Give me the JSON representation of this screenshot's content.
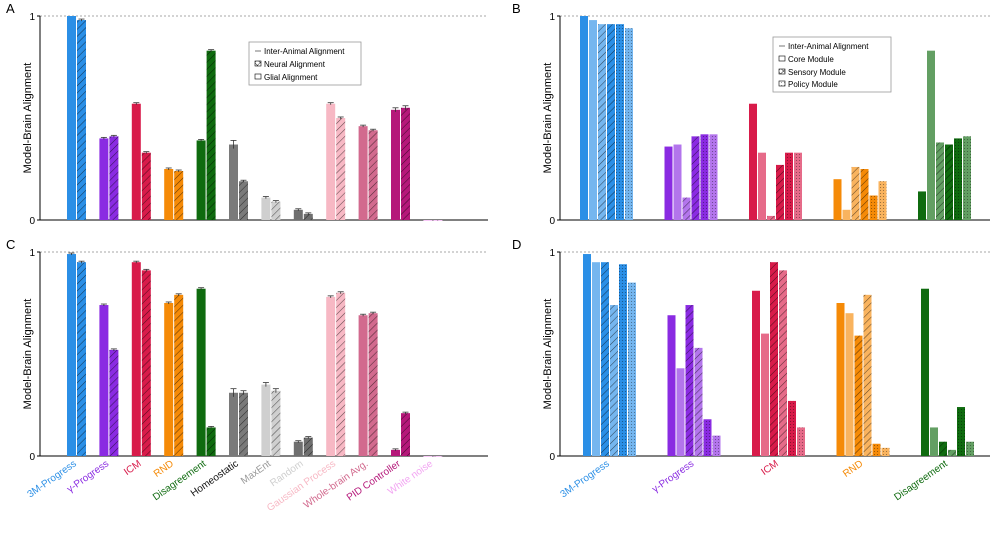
{
  "panel_labels": [
    "A",
    "B",
    "C",
    "D"
  ],
  "legends": {
    "A": [
      {
        "label": "Inter-Animal Alignment",
        "swatch": "line"
      },
      {
        "label": "Neural Alignment",
        "swatch": "crosshatch"
      },
      {
        "label": "Glial Alignment",
        "swatch": "open"
      }
    ],
    "B": [
      {
        "label": "Inter-Animal Alignment",
        "swatch": "line"
      },
      {
        "label": "Core Module",
        "swatch": "open"
      },
      {
        "label": "Sensory Module",
        "swatch": "crosshatch"
      },
      {
        "label": "Policy Module",
        "swatch": "dots"
      }
    ]
  },
  "bottom_labels_left": [
    {
      "text": "3M-Progress",
      "color": "#2b8fe6"
    },
    {
      "text": "γ-Progress",
      "color": "#8a2be2"
    },
    {
      "text": "ICM",
      "color": "#d81b4a"
    },
    {
      "text": "RND",
      "color": "#f58a07"
    },
    {
      "text": "Disagreement",
      "color": "#0f6b0f"
    },
    {
      "text": "Homeostatic",
      "color": "#111111"
    },
    {
      "text": "MaxEnt",
      "color": "#9a9a9a"
    },
    {
      "text": "Random",
      "color": "#cfcfcf"
    },
    {
      "text": "Gaussian Process",
      "color": "#f7b8c4"
    },
    {
      "text": "Whole-brain Avg.",
      "color": "#d26a8e"
    },
    {
      "text": "PID Controller",
      "color": "#b5187a"
    },
    {
      "text": "White noise",
      "color": "#f2a6f2"
    }
  ],
  "bottom_labels_right": [
    {
      "text": "3M-Progress",
      "color": "#2b8fe6"
    },
    {
      "text": "γ-Progress",
      "color": "#8a2be2"
    },
    {
      "text": "ICM",
      "color": "#d81b4a"
    },
    {
      "text": "RND",
      "color": "#f58a07"
    },
    {
      "text": "Disagreement",
      "color": "#0f6b0f"
    }
  ],
  "chart_data": [
    {
      "panel": "A",
      "type": "bar",
      "ylabel": "Model-Brain Alignment",
      "ylim": [
        0,
        1
      ],
      "yticks": [
        "0",
        "1"
      ],
      "reference_line": {
        "name": "Inter-Animal Alignment",
        "value": 1.0
      },
      "categories": [
        "3M-Progress",
        "γ-Progress",
        "ICM",
        "RND",
        "Disagreement",
        "Homeostatic",
        "MaxEnt",
        "Random",
        "Gaussian Process",
        "Whole-brain Avg.",
        "PID Controller",
        "White noise"
      ],
      "colors": [
        "#2b8fe6",
        "#8a2be2",
        "#d81b4a",
        "#f58a07",
        "#0f6b0f",
        "#7a7a7a",
        "#cfcfcf",
        "#6f6f6f",
        "#f7b8c4",
        "#d26a8e",
        "#b5187a",
        "#f2a6f2"
      ],
      "series": [
        {
          "name": "Glial Alignment",
          "pattern": "open",
          "values": [
            1.0,
            0.4,
            0.57,
            0.25,
            0.39,
            0.37,
            0.11,
            0.05,
            0.57,
            0.46,
            0.54,
            0.0
          ]
        },
        {
          "name": "Neural Alignment",
          "pattern": "hatch",
          "values": [
            0.98,
            0.41,
            0.33,
            0.24,
            0.83,
            0.19,
            0.09,
            0.03,
            0.5,
            0.44,
            0.55,
            0.0
          ]
        }
      ],
      "errors": [
        [
          0.0,
          0.005,
          0.005,
          0.005,
          0.005,
          0.02,
          0.005,
          0.005,
          0.005,
          0.005,
          0.01,
          0.0
        ],
        [
          0.005,
          0.005,
          0.005,
          0.005,
          0.005,
          0.005,
          0.005,
          0.005,
          0.005,
          0.005,
          0.01,
          0.0
        ]
      ]
    },
    {
      "panel": "B",
      "type": "bar",
      "ylabel": "Model-Brain Alignment",
      "ylim": [
        0,
        1
      ],
      "yticks": [
        "0",
        "1"
      ],
      "reference_line": {
        "name": "Inter-Animal Alignment",
        "value": 1.0
      },
      "categories": [
        "3M-Progress",
        "γ-Progress",
        "ICM",
        "RND",
        "Disagreement"
      ],
      "colors": [
        "#2b8fe6",
        "#8a2be2",
        "#d81b4a",
        "#f58a07",
        "#0f6b0f"
      ],
      "series": [
        {
          "name": "Core Module (Neural)",
          "pattern": "solid",
          "values": [
            1.0,
            0.36,
            0.57,
            0.2,
            0.14
          ]
        },
        {
          "name": "Core Module (Glial)",
          "pattern": "light",
          "values": [
            0.98,
            0.37,
            0.33,
            0.05,
            0.83
          ]
        },
        {
          "name": "Sensory Module (Neural)",
          "pattern": "hatch-light",
          "values": [
            0.96,
            0.11,
            0.02,
            0.26,
            0.38
          ]
        },
        {
          "name": "Sensory Module (Glial)",
          "pattern": "hatch",
          "values": [
            0.96,
            0.41,
            0.27,
            0.25,
            0.37
          ]
        },
        {
          "name": "Policy Module (Neural)",
          "pattern": "dots",
          "values": [
            0.96,
            0.42,
            0.33,
            0.12,
            0.4
          ]
        },
        {
          "name": "Policy Module (Glial)",
          "pattern": "dots-light",
          "values": [
            0.94,
            0.42,
            0.33,
            0.19,
            0.41
          ]
        }
      ]
    },
    {
      "panel": "C",
      "type": "bar",
      "ylabel": "Model-Brain Alignment",
      "ylim": [
        0,
        1
      ],
      "yticks": [
        "0",
        "1"
      ],
      "reference_line": {
        "name": "Inter-Animal Alignment",
        "value": 1.0
      },
      "categories": [
        "3M-Progress",
        "γ-Progress",
        "ICM",
        "RND",
        "Disagreement",
        "Homeostatic",
        "MaxEnt",
        "Random",
        "Gaussian Process",
        "Whole-brain Avg.",
        "PID Controller",
        "White noise"
      ],
      "colors": [
        "#2b8fe6",
        "#8a2be2",
        "#d81b4a",
        "#f58a07",
        "#0f6b0f",
        "#7a7a7a",
        "#cfcfcf",
        "#6f6f6f",
        "#f7b8c4",
        "#d26a8e",
        "#b5187a",
        "#f2a6f2"
      ],
      "series": [
        {
          "name": "Glial Alignment",
          "pattern": "open",
          "values": [
            0.99,
            0.74,
            0.95,
            0.75,
            0.82,
            0.31,
            0.35,
            0.07,
            0.78,
            0.69,
            0.03,
            0.0
          ]
        },
        {
          "name": "Neural Alignment",
          "pattern": "hatch",
          "values": [
            0.95,
            0.52,
            0.91,
            0.79,
            0.14,
            0.31,
            0.32,
            0.09,
            0.8,
            0.7,
            0.21,
            0.0
          ]
        }
      ],
      "errors": [
        [
          0.005,
          0.005,
          0.005,
          0.005,
          0.005,
          0.02,
          0.01,
          0.005,
          0.005,
          0.005,
          0.005,
          0.0
        ],
        [
          0.005,
          0.005,
          0.005,
          0.005,
          0.005,
          0.01,
          0.01,
          0.005,
          0.005,
          0.005,
          0.005,
          0.0
        ]
      ]
    },
    {
      "panel": "D",
      "type": "bar",
      "ylabel": "Model-Brain Alignment",
      "ylim": [
        0,
        1
      ],
      "yticks": [
        "0",
        "1"
      ],
      "reference_line": {
        "name": "Inter-Animal Alignment",
        "value": 1.0
      },
      "categories": [
        "3M-Progress",
        "γ-Progress",
        "ICM",
        "RND",
        "Disagreement"
      ],
      "colors": [
        "#2b8fe6",
        "#8a2be2",
        "#d81b4a",
        "#f58a07",
        "#0f6b0f"
      ],
      "series": [
        {
          "name": "Core Module (Neural)",
          "pattern": "solid",
          "values": [
            0.99,
            0.69,
            0.81,
            0.75,
            0.82
          ]
        },
        {
          "name": "Core Module (Glial)",
          "pattern": "light",
          "values": [
            0.95,
            0.43,
            0.6,
            0.7,
            0.14
          ]
        },
        {
          "name": "Sensory Module (Neural)",
          "pattern": "hatch",
          "values": [
            0.95,
            0.74,
            0.95,
            0.59,
            0.07
          ]
        },
        {
          "name": "Sensory Module (Glial)",
          "pattern": "hatch-light",
          "values": [
            0.74,
            0.53,
            0.91,
            0.79,
            0.03
          ]
        },
        {
          "name": "Policy Module (Neural)",
          "pattern": "dots",
          "values": [
            0.94,
            0.18,
            0.27,
            0.06,
            0.24
          ]
        },
        {
          "name": "Policy Module (Glial)",
          "pattern": "dots-light",
          "values": [
            0.85,
            0.1,
            0.14,
            0.04,
            0.07
          ]
        }
      ]
    }
  ]
}
